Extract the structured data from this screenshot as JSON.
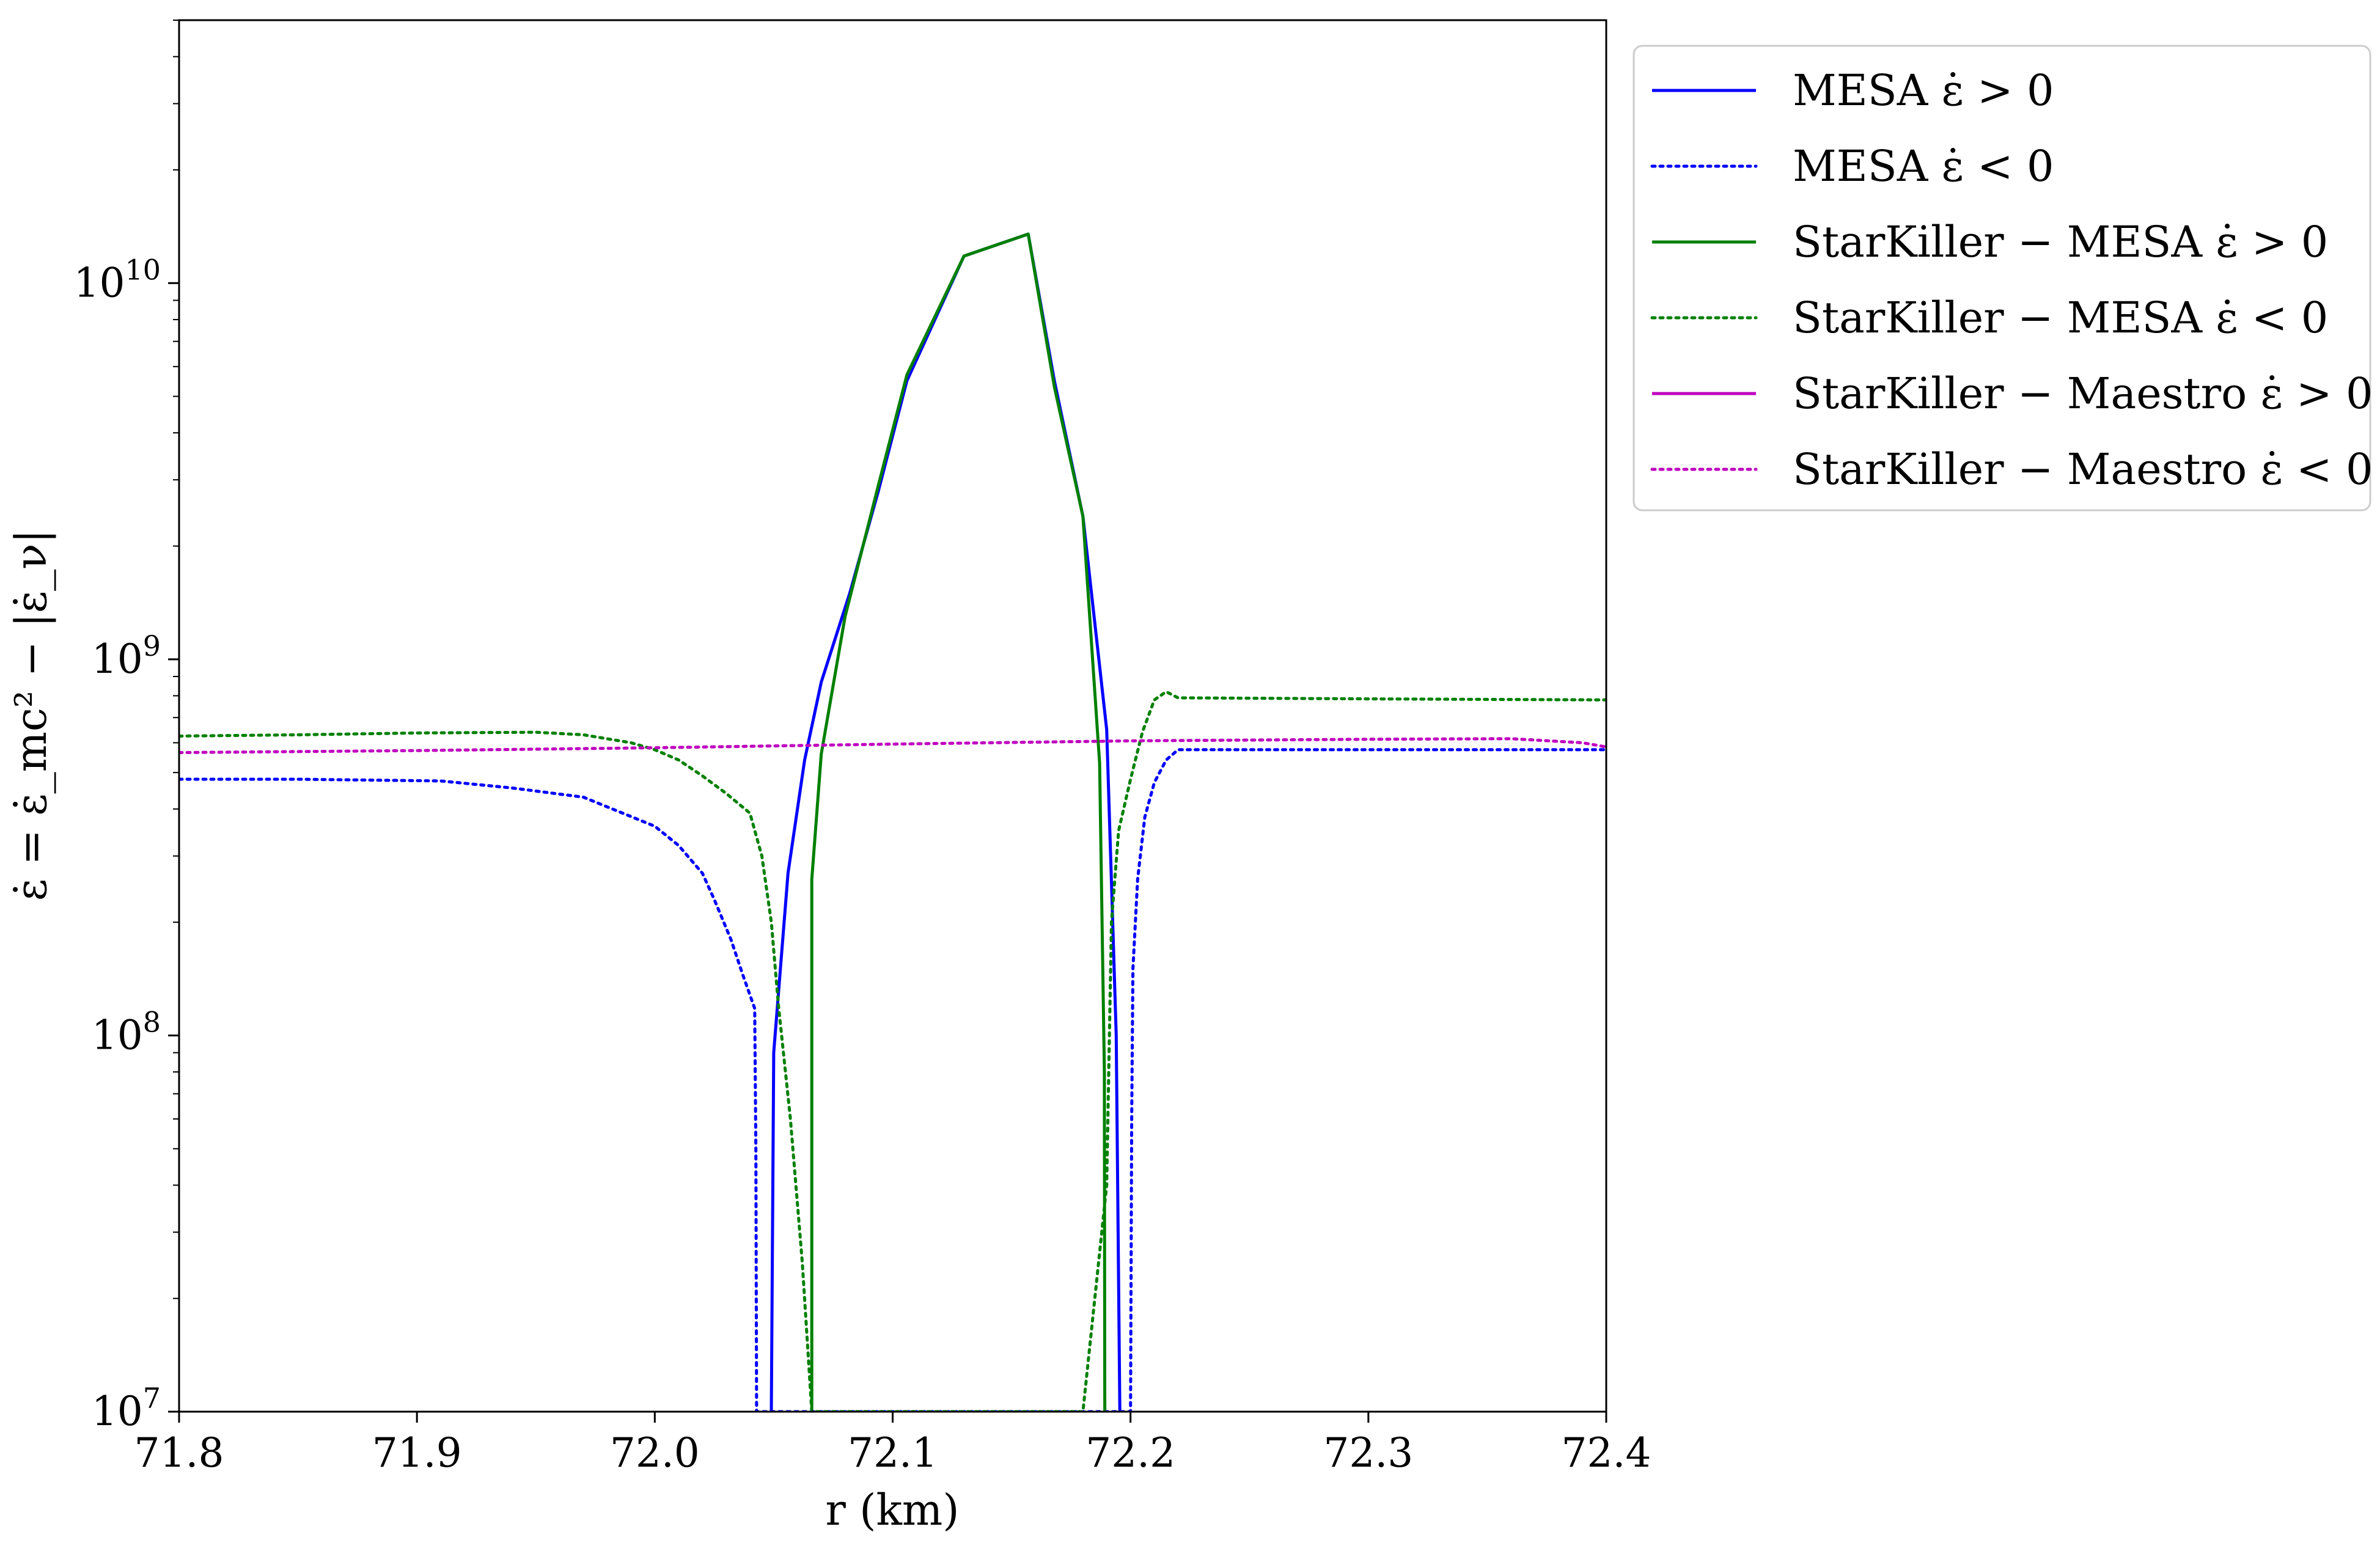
{
  "chart_data": {
    "type": "line",
    "xlabel": "r (km)",
    "ylabel": "ε̇ = ε̇_mc² − |ε̇_ν|",
    "xlim": [
      71.8,
      72.4
    ],
    "ylim": [
      10000000,
      50000000000
    ],
    "yscale": "log",
    "grid": false,
    "legend_placement": "outside upper right",
    "x_ticks": [
      {
        "value": 71.8,
        "label": "71.8"
      },
      {
        "value": 71.9,
        "label": "71.9"
      },
      {
        "value": 72.0,
        "label": "72.0"
      },
      {
        "value": 72.1,
        "label": "72.1"
      },
      {
        "value": 72.2,
        "label": "72.2"
      },
      {
        "value": 72.3,
        "label": "72.3"
      },
      {
        "value": 72.4,
        "label": "72.4"
      }
    ],
    "y_ticks": [
      {
        "value": 10000000,
        "base": "10",
        "exp": "7"
      },
      {
        "value": 100000000,
        "base": "10",
        "exp": "8"
      },
      {
        "value": 1000000000,
        "base": "10",
        "exp": "9"
      },
      {
        "value": 10000000000,
        "base": "10",
        "exp": "10"
      }
    ],
    "series": [
      {
        "name": "MESA ε̇ > 0",
        "color": "#0000ff",
        "dash": "solid",
        "x": [
          72.049,
          72.05,
          72.056,
          72.063,
          72.07,
          72.082,
          72.094,
          72.106,
          72.13,
          72.157,
          72.168,
          72.18,
          72.19,
          72.194,
          72.1955
        ],
        "y": [
          10000000,
          90000000,
          270000000,
          540000000,
          870000000,
          1500000000,
          2800000000,
          5500000000,
          11800000000,
          13500000000,
          5500000000,
          2400000000,
          650000000,
          100000000,
          10000000
        ]
      },
      {
        "name": "MESA ε̇ < 0",
        "color": "#0000ff",
        "dash": "dotted",
        "x": [
          71.8,
          71.85,
          71.91,
          71.94,
          71.97,
          72.0,
          72.01,
          72.02,
          72.025,
          72.032,
          72.037,
          72.042,
          72.0425,
          72.0428,
          72.2,
          72.2005,
          72.201,
          72.203,
          72.206,
          72.21,
          72.215,
          72.22,
          72.3,
          72.4
        ],
        "y": [
          480000000,
          480000000,
          475000000,
          455000000,
          430000000,
          360000000,
          320000000,
          270000000,
          230000000,
          180000000,
          145000000,
          118000000,
          50000000,
          10000000,
          10000000,
          60000000,
          150000000,
          260000000,
          380000000,
          470000000,
          540000000,
          575000000,
          575000000,
          575000000
        ]
      },
      {
        "name": "StarKiller − MESA ε̇ > 0",
        "color": "#008000",
        "dash": "solid",
        "x": [
          72.066,
          72.066,
          72.07,
          72.08,
          72.094,
          72.106,
          72.13,
          72.157,
          72.168,
          72.18,
          72.187,
          72.189,
          72.1892
        ],
        "y": [
          10000000,
          260000000,
          560000000,
          1300000000,
          2900000000,
          5700000000,
          11800000000,
          13500000000,
          5300000000,
          2400000000,
          530000000,
          80000000,
          10000000
        ]
      },
      {
        "name": "StarKiller − MESA ε̇ < 0",
        "color": "#008000",
        "dash": "dotted",
        "x": [
          71.8,
          71.85,
          71.9,
          71.95,
          71.97,
          71.99,
          72.0,
          72.01,
          72.02,
          72.03,
          72.04,
          72.045,
          72.049,
          72.052,
          72.057,
          72.062,
          72.066,
          72.18,
          72.19,
          72.192,
          72.195,
          72.2,
          72.205,
          72.21,
          72.215,
          72.22,
          72.3,
          72.4
        ],
        "y": [
          625000000,
          630000000,
          637000000,
          640000000,
          630000000,
          600000000,
          575000000,
          540000000,
          490000000,
          440000000,
          390000000,
          300000000,
          200000000,
          120000000,
          60000000,
          25000000,
          10000000,
          10000000,
          40000000,
          200000000,
          350000000,
          480000000,
          640000000,
          780000000,
          820000000,
          790000000,
          785000000,
          780000000
        ]
      },
      {
        "name": "StarKiller − Maestro ε̇ > 0",
        "color": "#bf00bf",
        "dash": "solid",
        "x": [],
        "y": []
      },
      {
        "name": "StarKiller − Maestro ε̇ < 0",
        "color": "#bf00bf",
        "dash": "dotted",
        "x": [
          71.8,
          71.9,
          72.0,
          72.1,
          72.2,
          72.3,
          72.36,
          72.39,
          72.4
        ],
        "y": [
          565000000,
          572000000,
          582000000,
          595000000,
          607000000,
          613000000,
          615000000,
          600000000,
          585000000
        ]
      }
    ]
  }
}
